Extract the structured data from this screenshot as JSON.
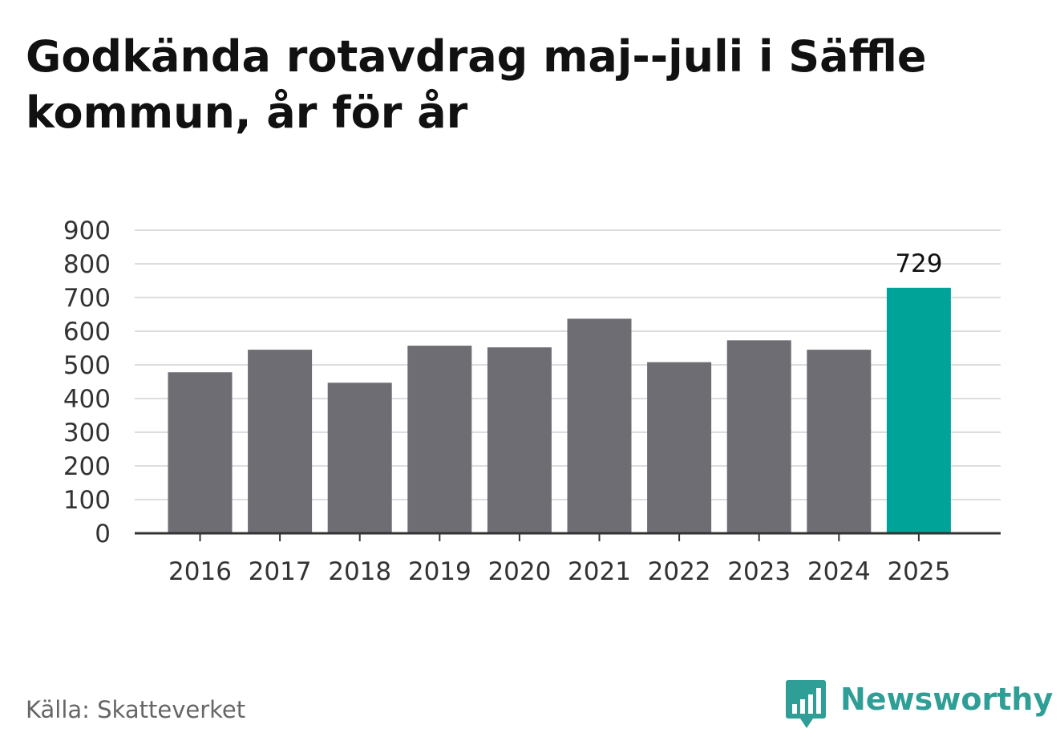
{
  "title": "Godkända rotavdrag maj--juli i Säffle kommun, år för år",
  "source": "Källa: Skatteverket",
  "brand": {
    "name": "Newsworthy",
    "icon": "newsworthy-logo-icon",
    "color": "#2f9e96"
  },
  "chart_data": {
    "type": "bar",
    "categories": [
      "2016",
      "2017",
      "2018",
      "2019",
      "2020",
      "2021",
      "2022",
      "2023",
      "2024",
      "2025"
    ],
    "values": [
      478,
      545,
      447,
      557,
      552,
      637,
      508,
      573,
      545,
      729
    ],
    "ylim": [
      0,
      900
    ],
    "yticks": [
      0,
      100,
      200,
      300,
      400,
      500,
      600,
      700,
      800,
      900
    ],
    "grid": true,
    "colors": {
      "bar": "#6e6d73",
      "highlight": "#00a398",
      "grid": "#dddddd",
      "axis": "#333333"
    },
    "highlight_index": 9,
    "data_labels": [
      {
        "index": 9,
        "text": "729"
      }
    ]
  }
}
